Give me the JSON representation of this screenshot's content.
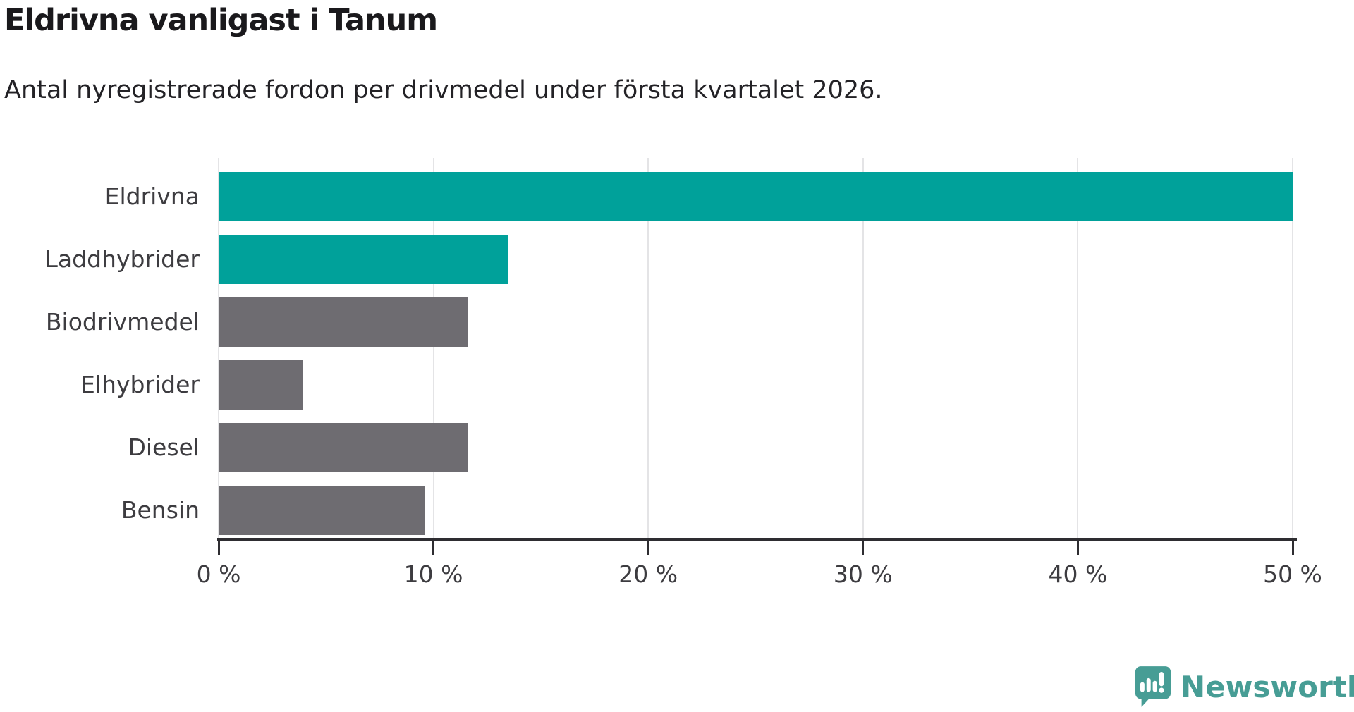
{
  "header": {
    "title": "Eldrivna vanligast i Tanum",
    "subtitle": "Antal nyregistrerade fordon per drivmedel under första kvartalet 2026."
  },
  "chart_data": {
    "type": "bar",
    "orientation": "horizontal",
    "title": "Eldrivna vanligast i Tanum",
    "subtitle": "Antal nyregistrerade fordon per drivmedel under första kvartalet 2026.",
    "categories": [
      "Eldrivna",
      "Laddhybrider",
      "Biodrivmedel",
      "Elhybrider",
      "Diesel",
      "Bensin"
    ],
    "values": [
      50,
      13.5,
      11.6,
      3.9,
      11.6,
      9.6
    ],
    "unit": "%",
    "xlim": [
      0,
      50
    ],
    "x_ticks": [
      "0 %",
      "10 %",
      "20 %",
      "30 %",
      "40 %",
      "50 %"
    ],
    "x_tick_values": [
      0,
      10,
      20,
      30,
      40,
      50
    ],
    "grid": true,
    "legend": false,
    "bar_colors": [
      "#00a19a",
      "#00a19a",
      "#6e6c71",
      "#6e6c71",
      "#6e6c71",
      "#6e6c71"
    ],
    "highlight_color": "#00a19a",
    "default_color": "#6e6c71"
  },
  "footer": {
    "brand": "Newsworthy",
    "logo_color": "#479d95"
  }
}
